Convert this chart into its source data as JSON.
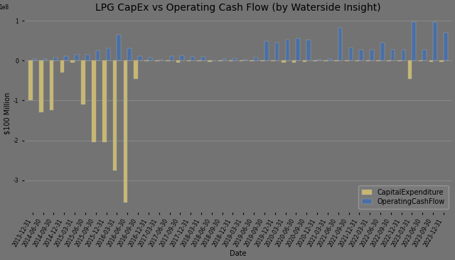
{
  "title": "LPG CapEx vs Operating Cash Flow (by Waterside Insight)",
  "xlabel": "Date",
  "ylabel": "$100 Million",
  "dates": [
    "2013-12-31",
    "2014-06-30",
    "2014-09-30",
    "2014-12-31",
    "2015-03-31",
    "2015-06-30",
    "2015-09-30",
    "2015-12-31",
    "2016-03-31",
    "2016-06-30",
    "2016-09-30",
    "2016-12-31",
    "2017-03-31",
    "2017-06-30",
    "2017-09-30",
    "2017-12-31",
    "2018-03-31",
    "2018-06-30",
    "2018-09-30",
    "2018-12-31",
    "2019-03-31",
    "2019-06-30",
    "2019-09-30",
    "2019-12-31",
    "2020-03-31",
    "2020-06-30",
    "2020-09-30",
    "2020-12-31",
    "2021-03-31",
    "2021-06-30",
    "2021-09-30",
    "2021-12-31",
    "2022-03-31",
    "2022-06-30",
    "2022-09-30",
    "2022-12-31",
    "2023-03-31",
    "2023-06-30",
    "2023-09-30",
    "2023-12-31"
  ],
  "capex": [
    -100000000.0,
    -130000000.0,
    -125000000.0,
    -30000000.0,
    -5000000.0,
    -110000000.0,
    -205000000.0,
    -205000000.0,
    -275000000.0,
    -355000000.0,
    -45000000.0,
    -2000000.0,
    -2000000.0,
    -1000000.0,
    -4000000.0,
    -1000000.0,
    -1000000.0,
    -3000000.0,
    -2000000.0,
    -2000000.0,
    -2000000.0,
    -1000000.0,
    -2000000.0,
    -2000000.0,
    -4000000.0,
    -4000000.0,
    -3000000.0,
    -1000000.0,
    -2000000.0,
    -1000000.0,
    -2000000.0,
    -2000000.0,
    -2000000.0,
    -2000000.0,
    -2000000.0,
    -2000000.0,
    -45000000.0,
    -2000000.0,
    -3000000.0,
    -3000000.0
  ],
  "ocf": [
    4000000.0,
    4000000.0,
    7000000.0,
    12000000.0,
    14000000.0,
    15000000.0,
    25000000.0,
    30000000.0,
    65000000.0,
    30000000.0,
    12000000.0,
    8000000.0,
    3000000.0,
    12000000.0,
    13000000.0,
    10000000.0,
    9000000.0,
    -2000000.0,
    4000000.0,
    5000000.0,
    2000000.0,
    8000000.0,
    48000000.0,
    45000000.0,
    53000000.0,
    55000000.0,
    53000000.0,
    3000000.0,
    4000000.0,
    82000000.0,
    33000000.0,
    28000000.0,
    28000000.0,
    45000000.0,
    28000000.0,
    28000000.0,
    97000000.0,
    28000000.0,
    97000000.0,
    70000000.0
  ],
  "capex_color": "#C8B870",
  "ocf_color": "#4A6FA5",
  "bg_color": "#737373",
  "plot_bg_color": "#737373",
  "grid_color": "#8a8a8a",
  "title_fontsize": 10,
  "label_fontsize": 7,
  "tick_fontsize": 5.5,
  "legend_fontsize": 7,
  "bar_width": 0.38,
  "ylim_min": -380000000.0,
  "ylim_max": 115000000.0
}
